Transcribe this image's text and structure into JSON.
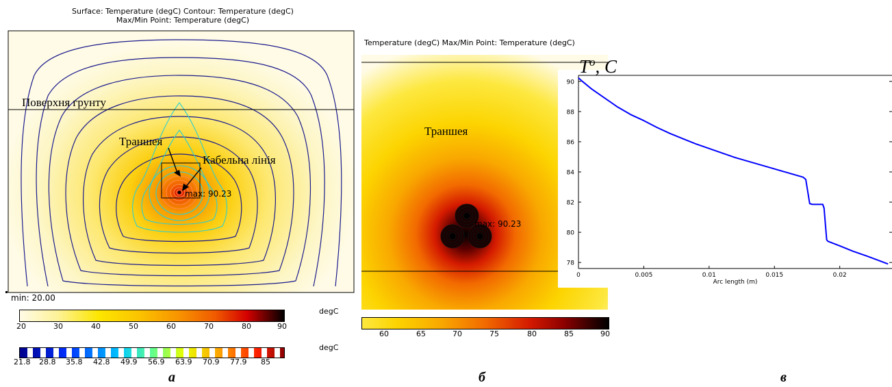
{
  "panel_a": {
    "title_line1": "Surface: Temperature (degC)  Contour: Temperature (degC)",
    "title_line2": "Max/Min Point: Temperature (degC)",
    "label_surface": "Поверхня грунту",
    "label_trench": "Траншея",
    "label_cable": "Кабельна лінія",
    "max_label": "max: 90.23",
    "min_label": "min: 20.00",
    "unit_surface": "degC",
    "unit_contour": "degC",
    "surface_ticks": [
      "20",
      "30",
      "40",
      "50",
      "60",
      "70",
      "80",
      "90"
    ],
    "contour_ticks": [
      "21.8",
      "28.8",
      "35.8",
      "42.8",
      "49.9",
      "56.9",
      "63.9",
      "70.9",
      "77.9",
      "85"
    ],
    "caption": "а"
  },
  "panel_b": {
    "title": "Temperature (degC)  Max/Min Point: Temperature (degC)",
    "label_trench": "Траншея",
    "max_label": "max: 90.23",
    "ticks": [
      "60",
      "65",
      "70",
      "75",
      "80",
      "85",
      "90"
    ],
    "caption": "б"
  },
  "panel_c": {
    "caption": "в",
    "y_title": "T",
    "y_title_sup": "o",
    "y_title_unit": ", C"
  },
  "chart_data": {
    "type": "line",
    "xlabel": "Arc length (m)",
    "ylabel": "T°, C",
    "xlim": [
      0,
      0.024
    ],
    "ylim": [
      77.6,
      90.4
    ],
    "xticks": [
      "0",
      "0.005",
      "0.01",
      "0.015",
      "0.02"
    ],
    "yticks": [
      "78",
      "80",
      "82",
      "84",
      "86",
      "88",
      "90"
    ],
    "grid": false,
    "series": [
      {
        "color": "#0000ff",
        "x": [
          0,
          0.0003,
          0.001,
          0.002,
          0.003,
          0.004,
          0.005,
          0.006,
          0.007,
          0.008,
          0.009,
          0.01,
          0.011,
          0.012,
          0.013,
          0.014,
          0.015,
          0.016,
          0.0172,
          0.0174,
          0.0177,
          0.0179,
          0.0187,
          0.0188,
          0.019,
          0.0191,
          0.02,
          0.021,
          0.022,
          0.0237
        ],
        "y": [
          90.23,
          90.0,
          89.5,
          88.9,
          88.3,
          87.8,
          87.4,
          86.95,
          86.55,
          86.2,
          85.85,
          85.55,
          85.25,
          84.95,
          84.7,
          84.45,
          84.2,
          83.95,
          83.65,
          83.5,
          81.9,
          81.85,
          81.85,
          81.6,
          79.5,
          79.4,
          79.1,
          78.75,
          78.45,
          77.9
        ]
      }
    ]
  },
  "colors": {
    "contour_line": "#1a1a8c",
    "contour_inner": "#2ccfd2",
    "series_line": "#0000ff"
  }
}
